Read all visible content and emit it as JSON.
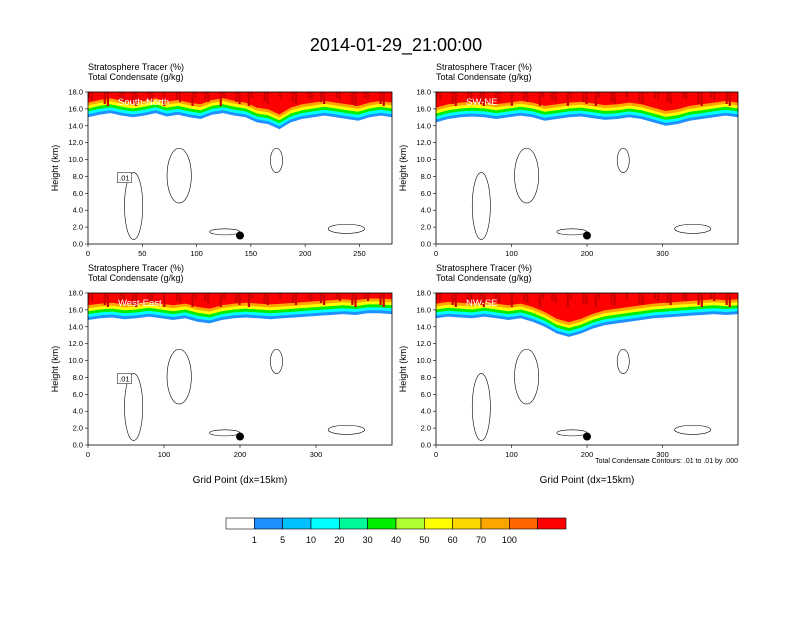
{
  "figure": {
    "title": "2014-01-29_21:00:00",
    "contour_note": "Total Condensate Contours: .01 to .01 by .000"
  },
  "colorbar": {
    "colors": [
      "#ffffff",
      "#1e90ff",
      "#00bfff",
      "#00ffff",
      "#00fa9a",
      "#00ee00",
      "#adff2f",
      "#ffff00",
      "#ffd700",
      "#ffa500",
      "#ff6600",
      "#ff0000"
    ],
    "labels": [
      "1",
      "5",
      "10",
      "20",
      "30",
      "40",
      "50",
      "60",
      "70",
      "100"
    ]
  },
  "chart_data": [
    {
      "type": "heatmap",
      "panel": "South-North",
      "region_label": "South-North",
      "subtitle_line1": "Stratosphere Tracer   (%)",
      "subtitle_line2": "Total Condensate   (g/kg)",
      "ylabel": "Height (km)",
      "xlabel": "",
      "xlim": [
        0,
        280
      ],
      "ylim": [
        0,
        18
      ],
      "xticks": [
        "0",
        "50",
        "100",
        "150",
        "200",
        "250"
      ],
      "xtick_values": [
        0,
        50,
        100,
        150,
        200,
        250
      ],
      "yticks": [
        "0.0",
        "2.0",
        "4.0",
        "6.0",
        "8.0",
        "10.0",
        "12.0",
        "14.0",
        "16.0",
        "18.0"
      ],
      "tracer_base_km": [
        15.0,
        15.3,
        15.5,
        15.2,
        15.0,
        15.2,
        15.5,
        15.1,
        15.3,
        15.0,
        14.8,
        15.3,
        15.5,
        15.2,
        15.0,
        14.4,
        14.2,
        13.6,
        14.4,
        14.8,
        15.0,
        15.2,
        15.0,
        14.8,
        14.6,
        15.0,
        15.2,
        15.0
      ],
      "contour_label": ".01",
      "marker": {
        "x": 140,
        "y": 1.0
      }
    },
    {
      "type": "heatmap",
      "panel": "SW-NE",
      "region_label": "SW-NE",
      "subtitle_line1": "Stratosphere Tracer   (%)",
      "subtitle_line2": "Total Condensate   (g/kg)",
      "ylabel": "Height (km)",
      "xlabel": "",
      "xlim": [
        0,
        400
      ],
      "ylim": [
        0,
        18
      ],
      "xticks": [
        "0",
        "100",
        "200",
        "300"
      ],
      "xtick_values": [
        0,
        100,
        200,
        300
      ],
      "yticks": [
        "0.0",
        "2.0",
        "4.0",
        "6.0",
        "8.0",
        "10.0",
        "12.0",
        "14.0",
        "16.0",
        "18.0"
      ],
      "tracer_base_km": [
        14.4,
        14.8,
        15.0,
        15.1,
        15.0,
        14.8,
        15.0,
        15.2,
        15.0,
        14.6,
        14.8,
        15.0,
        15.1,
        14.9,
        14.7,
        14.8,
        15.0,
        14.8,
        14.4,
        14.0,
        14.2,
        14.6,
        14.8,
        15.0,
        15.2,
        15.0
      ],
      "contour_label": "",
      "marker": {
        "x": 200,
        "y": 1.0
      }
    },
    {
      "type": "heatmap",
      "panel": "West-East",
      "region_label": "West-East",
      "subtitle_line1": "Stratosphere Tracer   (%)",
      "subtitle_line2": "Total Condensate   (g/kg)",
      "ylabel": "Height (km)",
      "xlabel": "Grid Point (dx=15km)",
      "xlim": [
        0,
        400
      ],
      "ylim": [
        0,
        18
      ],
      "xticks": [
        "0",
        "100",
        "200",
        "300"
      ],
      "xtick_values": [
        0,
        100,
        200,
        300
      ],
      "yticks": [
        "0.0",
        "2.0",
        "4.0",
        "6.0",
        "8.0",
        "10.0",
        "12.0",
        "14.0",
        "16.0",
        "18.0"
      ],
      "tracer_base_km": [
        14.8,
        15.0,
        15.1,
        14.9,
        15.0,
        15.2,
        15.0,
        14.8,
        15.0,
        14.6,
        14.4,
        14.8,
        15.0,
        15.1,
        15.0,
        14.9,
        15.0,
        15.1,
        15.2,
        15.3,
        15.4,
        15.5,
        15.4,
        15.6,
        15.6,
        15.5
      ],
      "contour_label": ".01",
      "marker": {
        "x": 200,
        "y": 1.0
      }
    },
    {
      "type": "heatmap",
      "panel": "NW-SE",
      "region_label": "NW-SE",
      "subtitle_line1": "Stratosphere Tracer   (%)",
      "subtitle_line2": "Total Condensate   (g/kg)",
      "ylabel": "Height (km)",
      "xlabel": "Grid Point (dx=15km)",
      "xlim": [
        0,
        400
      ],
      "ylim": [
        0,
        18
      ],
      "xticks": [
        "0",
        "100",
        "200",
        "300"
      ],
      "xtick_values": [
        0,
        100,
        200,
        300
      ],
      "yticks": [
        "0.0",
        "2.0",
        "4.0",
        "6.0",
        "8.0",
        "10.0",
        "12.0",
        "14.0",
        "16.0",
        "18.0"
      ],
      "tracer_base_km": [
        15.0,
        15.2,
        15.1,
        15.0,
        15.2,
        15.0,
        14.8,
        15.0,
        14.6,
        14.0,
        13.2,
        12.8,
        13.2,
        13.8,
        14.2,
        14.4,
        14.6,
        14.8,
        15.0,
        15.1,
        15.2,
        15.3,
        15.4,
        15.5,
        15.4,
        15.5
      ],
      "contour_label": "",
      "marker": {
        "x": 200,
        "y": 1.0
      }
    }
  ]
}
